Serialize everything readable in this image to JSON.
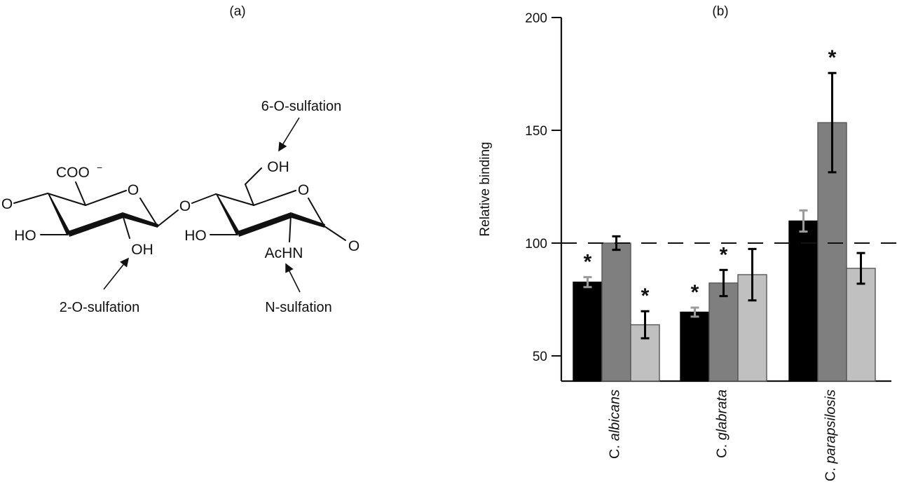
{
  "panels": {
    "a_label": "(a)",
    "b_label": "(b)"
  },
  "structure": {
    "left_ring": {
      "o_left": "O",
      "ring_o": "O",
      "carboxylate": "COO",
      "carboxylate_charge": "−",
      "ho": "HO",
      "oh": "OH"
    },
    "glycosidic_o": "O",
    "right_ring": {
      "ring_o": "O",
      "ho": "HO",
      "oh": "OH",
      "achn": "AcHN",
      "o_right": "O"
    },
    "annotations": {
      "six_o": "6-O-sulfation",
      "two_o": "2-O-sulfation",
      "n": "N-sulfation"
    }
  },
  "chart_data": {
    "type": "bar",
    "ylabel": "Relative binding",
    "xlabel": "",
    "ylim": [
      38.5,
      200
    ],
    "yticks": [
      50,
      100,
      150,
      200
    ],
    "reference_line": 100,
    "grid": false,
    "categories": [
      "C. albicans",
      "C. glabrata",
      "C. parapsilosis"
    ],
    "category_italic_parts": [
      "albicans",
      "glabrata",
      "parapsilosis"
    ],
    "series": [
      {
        "color": "#000000",
        "error_color": "#9a9a9a",
        "values": [
          82.7,
          69.4,
          109.8
        ],
        "errors": [
          2.2,
          2.0,
          4.7
        ],
        "significant": [
          true,
          true,
          false
        ]
      },
      {
        "color": "#7f7f7f",
        "error_color": "#000000",
        "values": [
          100,
          82.3,
          153.4
        ],
        "errors": [
          3.0,
          5.8,
          22.0
        ],
        "significant": [
          false,
          true,
          true
        ]
      },
      {
        "color": "#c0c0c0",
        "error_color": "#000000",
        "values": [
          63.8,
          86.0,
          88.8
        ],
        "errors": [
          6.0,
          11.4,
          6.8
        ],
        "significant": [
          true,
          false,
          false
        ]
      }
    ],
    "significance_marker": "*"
  }
}
